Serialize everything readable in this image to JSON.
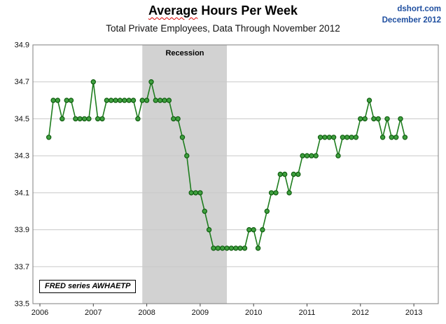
{
  "header": {
    "title": "Average Hours Per Week",
    "title_word1": "Average",
    "title_rest": " Hours Per Week",
    "subtitle": "Total Private Employees, Data Through November 2012",
    "source": "dshort.com",
    "date": "December 2012"
  },
  "annotations": {
    "recession_label": "Recession",
    "series_label": "FRED series AWHAETP"
  },
  "chart_data": {
    "type": "line",
    "title": "Average Hours Per Week",
    "subtitle": "Total Private Employees, Data Through November 2012",
    "xlabel": "",
    "ylabel": "",
    "series_name": "AWHAETP",
    "frequency": "monthly",
    "start": "2006-03",
    "end": "2012-11",
    "ylim": [
      33.5,
      34.9
    ],
    "ytick_step": 0.2,
    "xticks": [
      2006,
      2007,
      2008,
      2009,
      2010,
      2011,
      2012,
      2013
    ],
    "grid": "horizontal",
    "legend": "none",
    "recession_band": {
      "start": 2007.917,
      "end": 2009.5
    },
    "values": [
      34.4,
      34.6,
      34.6,
      34.5,
      34.6,
      34.6,
      34.5,
      34.5,
      34.5,
      34.5,
      34.7,
      34.5,
      34.5,
      34.6,
      34.6,
      34.6,
      34.6,
      34.6,
      34.6,
      34.6,
      34.5,
      34.6,
      34.6,
      34.7,
      34.6,
      34.6,
      34.6,
      34.6,
      34.5,
      34.5,
      34.4,
      34.3,
      34.1,
      34.1,
      34.1,
      34.0,
      33.9,
      33.8,
      33.8,
      33.8,
      33.8,
      33.8,
      33.8,
      33.8,
      33.8,
      33.9,
      33.9,
      33.8,
      33.9,
      34.0,
      34.1,
      34.1,
      34.2,
      34.2,
      34.1,
      34.2,
      34.2,
      34.3,
      34.3,
      34.3,
      34.3,
      34.4,
      34.4,
      34.4,
      34.4,
      34.3,
      34.4,
      34.4,
      34.4,
      34.4,
      34.5,
      34.5,
      34.6,
      34.5,
      34.5,
      34.4,
      34.5,
      34.4,
      34.4,
      34.5,
      34.4
    ],
    "colors": {
      "line": "#1e7d1e",
      "marker_fill": "#3fa03f",
      "marker_edge": "#0f5c0f",
      "band": "#d2d2d2",
      "grid": "#c8c8c8",
      "border": "#7f7f7f",
      "tick_text": "#111111",
      "header_blue": "#1f4fa0",
      "underline_red": "#e00000"
    }
  }
}
